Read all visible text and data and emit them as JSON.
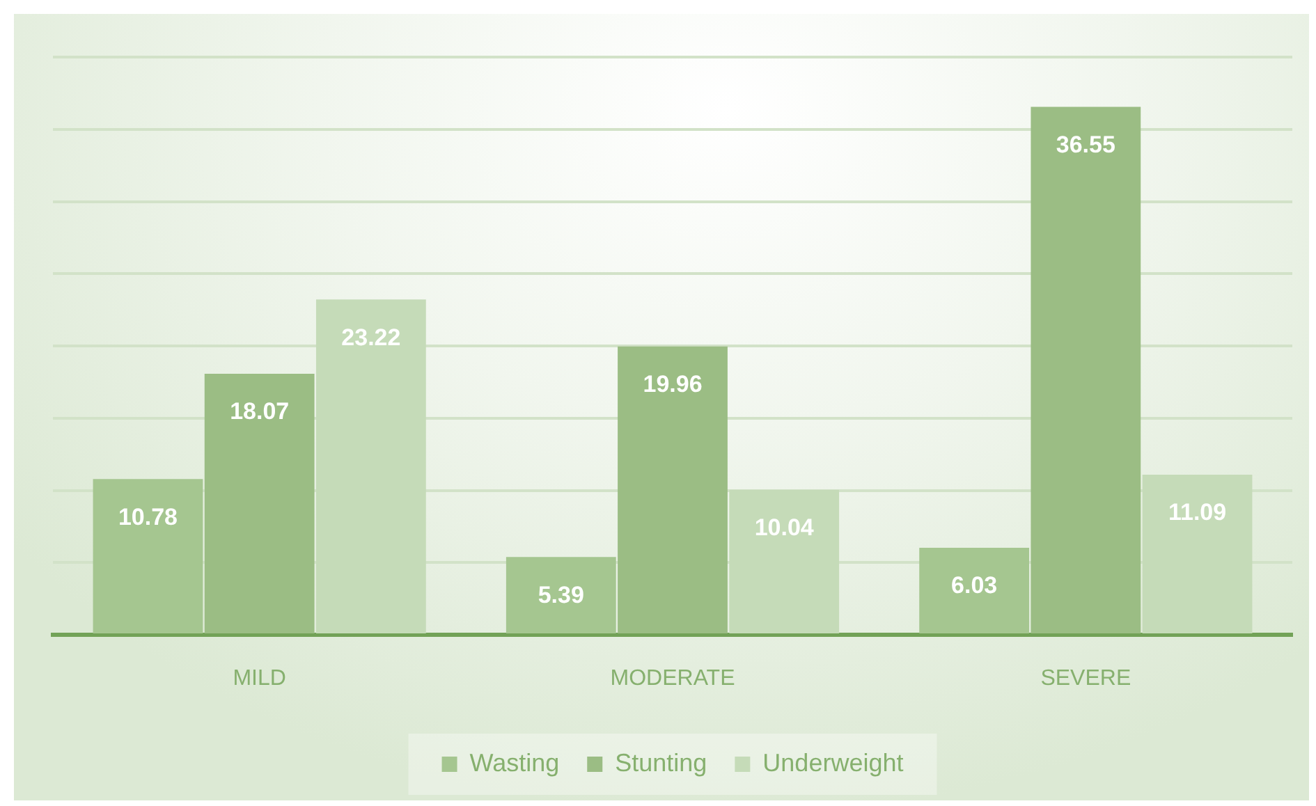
{
  "chart_data": {
    "type": "bar",
    "categories": [
      "MILD",
      "MODERATE",
      "SEVERE"
    ],
    "series": [
      {
        "name": "Wasting",
        "color": "#a5c690",
        "values": [
          10.78,
          5.39,
          6.03
        ]
      },
      {
        "name": "Stunting",
        "color": "#9bbd84",
        "values": [
          18.07,
          19.96,
          36.55
        ]
      },
      {
        "name": "Underweight",
        "color": "#c5dbb8",
        "values": [
          23.22,
          10.04,
          11.09
        ]
      }
    ],
    "ylim": [
      0,
      40
    ],
    "tick_labels": "x",
    "grid": "y",
    "legend": "bottom",
    "data_labels": true
  }
}
